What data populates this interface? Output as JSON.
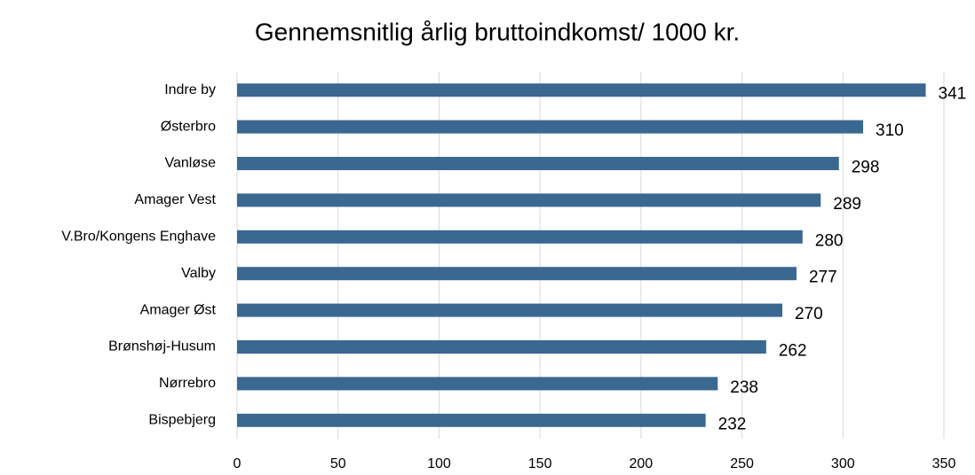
{
  "chart_data": {
    "type": "bar",
    "title": "Gennemsnitlig årlig bruttoindkomst/ 1000 kr.",
    "categories": [
      "Indre by",
      "Østerbro",
      "Vanløse",
      "Amager Vest",
      "V.Bro/Kongens Enghave",
      "Valby",
      "Amager Øst",
      "Brønshøj-Husum",
      "Nørrebro",
      "Bispebjerg"
    ],
    "values": [
      341,
      310,
      298,
      289,
      280,
      277,
      270,
      262,
      238,
      232
    ],
    "color": "#3a6890",
    "xlim": [
      0,
      350
    ],
    "xticks": [
      0,
      50,
      100,
      150,
      200,
      250,
      300,
      350
    ],
    "grid": true
  }
}
